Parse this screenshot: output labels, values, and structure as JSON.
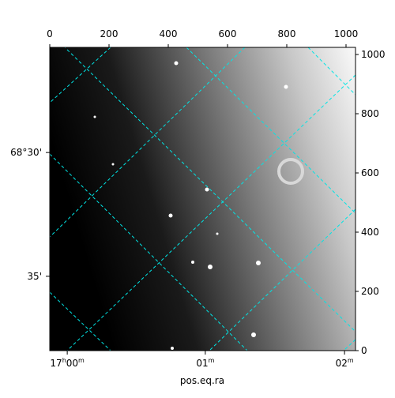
{
  "chart_data": {
    "type": "image",
    "xlabel": "pos.eq.ra",
    "xlim": [
      0,
      1032
    ],
    "ylim": [
      0,
      1024
    ],
    "xticks": [
      0,
      200,
      400,
      600,
      800,
      1000
    ],
    "yticks": [
      0,
      200,
      400,
      600,
      800,
      1000
    ],
    "ra_ticks": [
      {
        "value": 59,
        "label": "17h00m"
      },
      {
        "value": 525,
        "label": "01m"
      },
      {
        "value": 995,
        "label": "02m"
      }
    ],
    "dec_ticks": [
      {
        "value": 669,
        "label": "68°30'"
      },
      {
        "value": 251,
        "label": "35'"
      }
    ],
    "grid_color": "#00e5e5"
  }
}
